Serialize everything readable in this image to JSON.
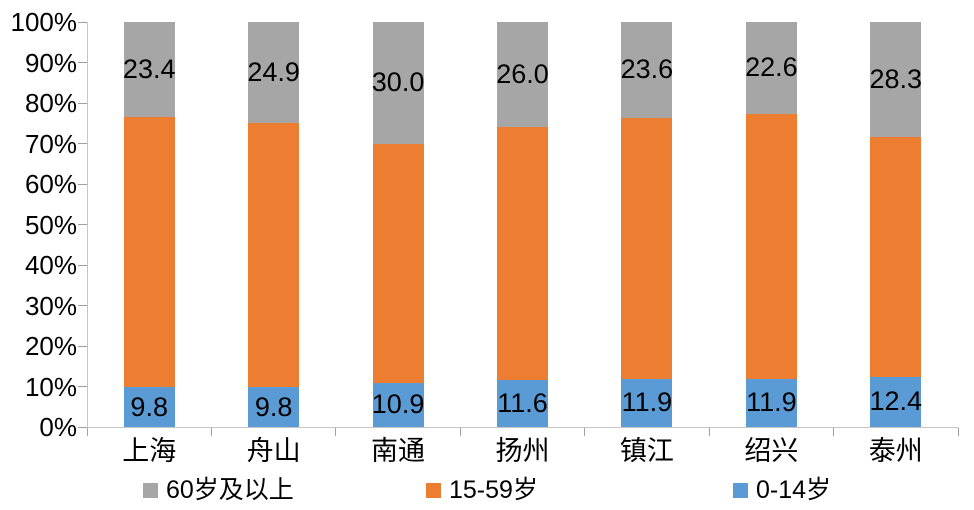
{
  "chart_data": {
    "type": "bar",
    "variant": "100-percent-stacked-column",
    "title": "",
    "xlabel": "",
    "ylabel": "",
    "grid": false,
    "ylim": [
      0,
      100
    ],
    "yticks": [
      "0%",
      "10%",
      "20%",
      "30%",
      "40%",
      "50%",
      "60%",
      "70%",
      "80%",
      "90%",
      "100%"
    ],
    "categories": [
      "上海",
      "舟山",
      "南通",
      "扬州",
      "镇江",
      "绍兴",
      "泰州"
    ],
    "series": [
      {
        "name": "0-14岁",
        "color": "#5B9BD5",
        "values": [
          9.8,
          9.8,
          10.9,
          11.6,
          11.9,
          11.9,
          12.4
        ],
        "data_labels": [
          "9.8",
          "9.8",
          "10.9",
          "11.6",
          "11.9",
          "11.9",
          "12.4"
        ],
        "labels_visible": true
      },
      {
        "name": "15-59岁",
        "color": "#ED7D31",
        "values": [
          66.8,
          65.3,
          59.1,
          62.4,
          64.5,
          65.5,
          59.3
        ],
        "data_labels": [],
        "labels_visible": false
      },
      {
        "name": "60岁及以上",
        "color": "#A6A6A6",
        "values": [
          23.4,
          24.9,
          30.0,
          26.0,
          23.6,
          22.6,
          28.3
        ],
        "data_labels": [
          "23.4",
          "24.9",
          "30.0",
          "26.0",
          "23.6",
          "22.6",
          "28.3"
        ],
        "labels_visible": true
      }
    ],
    "legend": {
      "position": "bottom",
      "items": [
        {
          "label": "60岁及以上",
          "color": "#A6A6A6"
        },
        {
          "label": "15-59岁",
          "color": "#ED7D31"
        },
        {
          "label": "0-14岁",
          "color": "#5B9BD5"
        }
      ]
    },
    "colors": {
      "axis_line": "#c6c6c6",
      "tick": "#9f9f9f",
      "text": "#000000",
      "background": "#ffffff"
    }
  }
}
